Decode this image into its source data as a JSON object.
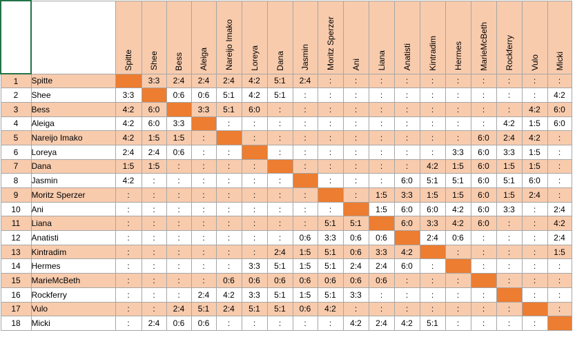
{
  "columns": [
    "Spitte",
    "Shee",
    "Bess",
    "Aleiga",
    "Nareijo Imako",
    "Loreya",
    "Dana",
    "Jasmin",
    "Moritz Sperzer",
    "Ani",
    "Liana",
    "Anatisti",
    "Kintradim",
    "Hermes",
    "MarieMcBeth",
    "Rockferry",
    "Vulo",
    "Micki"
  ],
  "rows": [
    {
      "num": "1",
      "name": "Spitte",
      "cells": [
        "",
        "3:3",
        "2:4",
        "2:4",
        "2:4",
        "4:2",
        "5:1",
        "2:4",
        ":",
        ":",
        ":",
        ":",
        ":",
        ":",
        ":",
        ":",
        ":",
        ":"
      ]
    },
    {
      "num": "2",
      "name": "Shee",
      "cells": [
        "3:3",
        "",
        "0:6",
        "0:6",
        "5:1",
        "4:2",
        "5:1",
        ":",
        ":",
        ":",
        ":",
        ":",
        ":",
        ":",
        ":",
        ":",
        ":",
        "4:2"
      ]
    },
    {
      "num": "3",
      "name": "Bess",
      "cells": [
        "4:2",
        "6:0",
        "",
        "3:3",
        "5:1",
        "6:0",
        ":",
        ":",
        ":",
        ":",
        ":",
        ":",
        ":",
        ":",
        ":",
        ":",
        "4:2",
        "6:0"
      ]
    },
    {
      "num": "4",
      "name": "Aleiga",
      "cells": [
        "4:2",
        "6:0",
        "3:3",
        "",
        ":",
        ":",
        ":",
        ":",
        ":",
        ":",
        ":",
        ":",
        ":",
        ":",
        ":",
        "4:2",
        "1:5",
        "6:0"
      ]
    },
    {
      "num": "5",
      "name": "Nareijo Imako",
      "cells": [
        "4:2",
        "1:5",
        "1:5",
        ":",
        "",
        ":",
        ":",
        ":",
        ":",
        ":",
        ":",
        ":",
        ":",
        ":",
        "6:0",
        "2:4",
        "4:2",
        ":"
      ]
    },
    {
      "num": "6",
      "name": "Loreya",
      "cells": [
        "2:4",
        "2:4",
        "0:6",
        ":",
        ":",
        "",
        ":",
        ":",
        ":",
        ":",
        ":",
        ":",
        ":",
        "3:3",
        "6:0",
        "3:3",
        "1:5",
        ":"
      ]
    },
    {
      "num": "7",
      "name": "Dana",
      "cells": [
        "1:5",
        "1:5",
        ":",
        ":",
        ":",
        ":",
        "",
        ":",
        ":",
        ":",
        ":",
        ":",
        "4:2",
        "1:5",
        "6:0",
        "1:5",
        "1:5",
        ":"
      ]
    },
    {
      "num": "8",
      "name": "Jasmin",
      "cells": [
        "4:2",
        ":",
        ":",
        ":",
        ":",
        ":",
        ":",
        "",
        ":",
        ":",
        ":",
        "6:0",
        "5:1",
        "5:1",
        "6:0",
        "5:1",
        "6:0",
        ":"
      ]
    },
    {
      "num": "9",
      "name": "Moritz Sperzer",
      "cells": [
        ":",
        ":",
        ":",
        ":",
        ":",
        ":",
        ":",
        ":",
        "",
        ":",
        "1:5",
        "3:3",
        "1:5",
        "1:5",
        "6:0",
        "1:5",
        "2:4",
        ":"
      ]
    },
    {
      "num": "10",
      "name": "Ani",
      "cells": [
        ":",
        ":",
        ":",
        ":",
        ":",
        ":",
        ":",
        ":",
        ":",
        "",
        "1:5",
        "6:0",
        "6:0",
        "4:2",
        "6:0",
        "3:3",
        ":",
        "2:4"
      ]
    },
    {
      "num": "11",
      "name": "Liana",
      "cells": [
        ":",
        ":",
        ":",
        ":",
        ":",
        ":",
        ":",
        ":",
        "5:1",
        "5:1",
        "",
        "6:0",
        "3:3",
        "4:2",
        "6:0",
        ":",
        ":",
        "4:2"
      ]
    },
    {
      "num": "12",
      "name": "Anatisti",
      "cells": [
        ":",
        ":",
        ":",
        ":",
        ":",
        ":",
        ":",
        "0:6",
        "3:3",
        "0:6",
        "0:6",
        "",
        "2:4",
        "0:6",
        ":",
        ":",
        ":",
        "2:4"
      ]
    },
    {
      "num": "13",
      "name": "Kintradim",
      "cells": [
        ":",
        ":",
        ":",
        ":",
        ":",
        ":",
        "2:4",
        "1:5",
        "5:1",
        "0:6",
        "3:3",
        "4:2",
        "",
        ":",
        ":",
        ":",
        ":",
        "1:5"
      ]
    },
    {
      "num": "14",
      "name": "Hermes",
      "cells": [
        ":",
        ":",
        ":",
        ":",
        ":",
        "3:3",
        "5:1",
        "1:5",
        "5:1",
        "2:4",
        "2:4",
        "6:0",
        ":",
        "",
        ":",
        ":",
        ":",
        ":"
      ]
    },
    {
      "num": "15",
      "name": "MarieMcBeth",
      "cells": [
        ":",
        ":",
        ":",
        ":",
        "0:6",
        "0:6",
        "0:6",
        "0:6",
        "0:6",
        "0:6",
        "0:6",
        ":",
        ":",
        ":",
        "",
        ":",
        ":",
        ":"
      ]
    },
    {
      "num": "16",
      "name": "Rockferry",
      "cells": [
        ":",
        ":",
        ":",
        "2:4",
        "4:2",
        "3:3",
        "5:1",
        "1:5",
        "5:1",
        "3:3",
        ":",
        ":",
        ":",
        ":",
        ":",
        "",
        ":",
        ":"
      ]
    },
    {
      "num": "17",
      "name": "Vulo",
      "cells": [
        ":",
        ":",
        "2:4",
        "5:1",
        "2:4",
        "5:1",
        "5:1",
        "0:6",
        "4:2",
        ":",
        ":",
        ":",
        ":",
        ":",
        ":",
        ":",
        "",
        ":"
      ]
    },
    {
      "num": "18",
      "name": "Micki",
      "cells": [
        ":",
        "2:4",
        "0:6",
        "0:6",
        ":",
        ":",
        ":",
        ":",
        ":",
        "4:2",
        "2:4",
        "4:2",
        "5:1",
        ":",
        ":",
        ":",
        ":",
        ""
      ]
    }
  ],
  "colors": {
    "header": "#f8cbad",
    "odd_row": "#f8cbad",
    "even_row": "#ffffff",
    "diagonal": "#ed7d31",
    "gridline": "#a6a6a6",
    "selection": "#217346"
  }
}
